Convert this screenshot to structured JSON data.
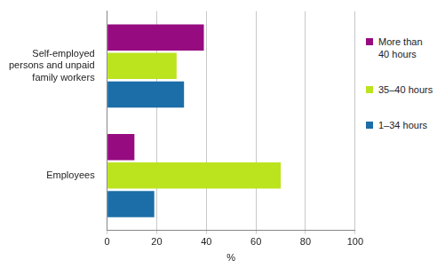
{
  "chart_data": {
    "type": "bar",
    "orientation": "horizontal",
    "categories": [
      "Self-employed persons and unpaid family workers",
      "Employees"
    ],
    "series": [
      {
        "name": "More than 40 hours",
        "color": "#970b80",
        "values": [
          39,
          11
        ]
      },
      {
        "name": "35–40 hours",
        "color": "#bbe31e",
        "values": [
          28,
          70
        ]
      },
      {
        "name": "1–34 hours",
        "color": "#1b6ea8",
        "values": [
          31,
          19
        ]
      }
    ],
    "x_label": "%",
    "xlim": [
      0,
      100
    ],
    "xticks": [
      0,
      20,
      40,
      60,
      80,
      100
    ],
    "grid": true,
    "legend": "right"
  }
}
